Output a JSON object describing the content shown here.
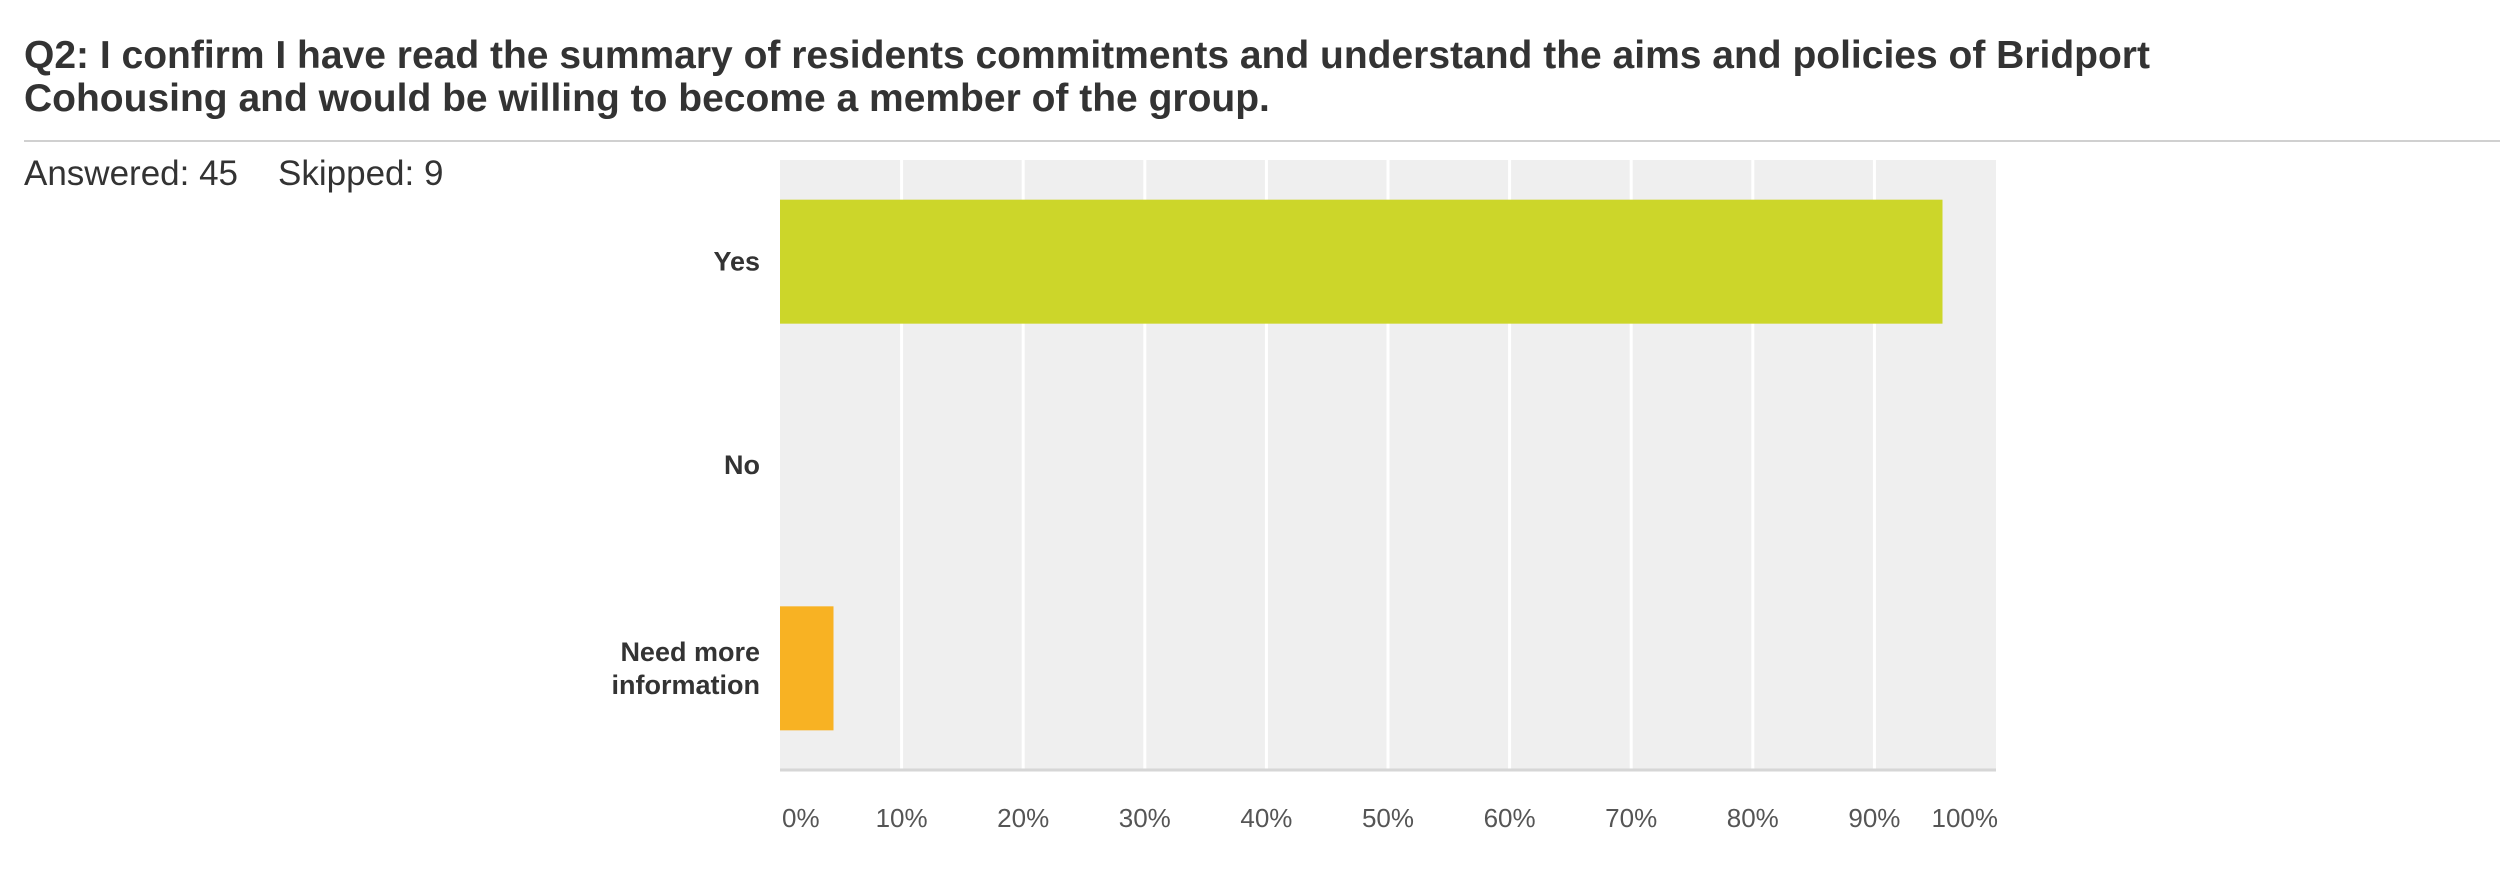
{
  "question": {
    "line1": "Q2: I confirm I have read the summary of residents commitments and understand the aims and policies of Bridport",
    "line2": "Cohousing and would be willing to become a member of the group."
  },
  "stats": {
    "answered": "Answered: 45",
    "skipped": "Skipped: 9"
  },
  "colors": {
    "plot_background": "#efefef",
    "gridline": "#ffffff"
  },
  "chart_data": {
    "type": "bar",
    "orientation": "horizontal",
    "categories": [
      {
        "label_lines": [
          "Yes"
        ],
        "value": 95.6,
        "color": "#ccd62a"
      },
      {
        "label_lines": [
          "No"
        ],
        "value": 0,
        "color": "#ccd62a"
      },
      {
        "label_lines": [
          "Need more",
          "information"
        ],
        "value": 4.4,
        "color": "#f8b223"
      }
    ],
    "xlim": [
      0,
      100
    ],
    "ticks": [
      "0%",
      "10%",
      "20%",
      "30%",
      "40%",
      "50%",
      "60%",
      "70%",
      "80%",
      "90%",
      "100%"
    ],
    "grid": true
  }
}
